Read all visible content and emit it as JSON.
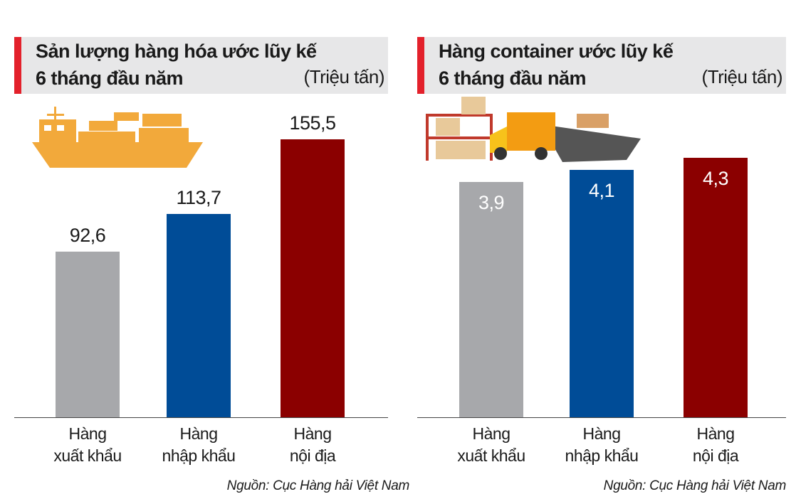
{
  "chart_data": [
    {
      "type": "bar",
      "title": "Sản lượng hàng hóa ước lũy kế\n6 tháng đầu năm",
      "subtitle": "(Triệu tấn)",
      "categories": [
        "Hàng\nxuất khẩu",
        "Hàng\nnhập khẩu",
        "Hàng\nnội địa"
      ],
      "values": [
        92.6,
        113.7,
        155.5
      ],
      "value_labels": [
        "92,6",
        "113,7",
        "155,5"
      ],
      "colors": [
        "#a7a8ab",
        "#004c97",
        "#8b0000"
      ],
      "source": "Nguồn: Cục Hàng hải Việt Nam"
    },
    {
      "type": "bar",
      "title": "Hàng container ước lũy kế\n6 tháng đầu năm",
      "subtitle": "(Triệu tấn)",
      "categories": [
        "Hàng\nxuất khẩu",
        "Hàng\nnhập khẩu",
        "Hàng\nnội địa"
      ],
      "values": [
        3.9,
        4.1,
        4.3
      ],
      "value_labels": [
        "3,9",
        "4,1",
        "4,3"
      ],
      "colors": [
        "#a7a8ab",
        "#004c97",
        "#8b0000"
      ],
      "source": "Nguồn: Cục Hàng hải Việt Nam"
    }
  ]
}
